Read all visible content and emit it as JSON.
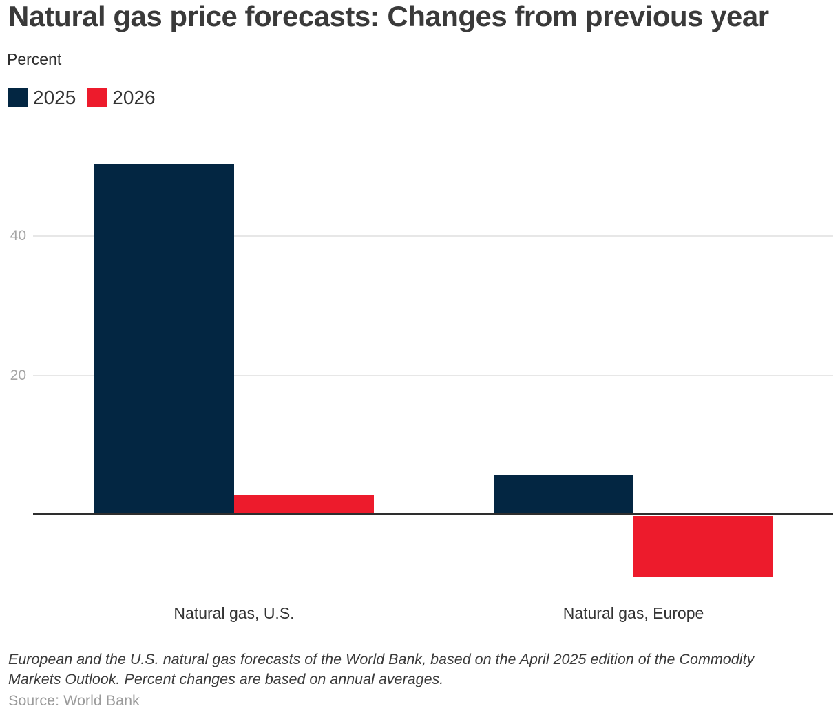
{
  "chart_data": {
    "type": "bar",
    "title": "Natural gas price forecasts: Changes from previous year",
    "ylabel": "Percent",
    "categories": [
      "Natural gas, U.S.",
      "Natural gas, Europe"
    ],
    "series": [
      {
        "name": "2025",
        "color": "#032642",
        "values": [
          50.4,
          5.7
        ]
      },
      {
        "name": "2026",
        "color": "#ed1b2c",
        "values": [
          3.0,
          -8.7
        ]
      }
    ],
    "yticks": [
      20,
      40
    ],
    "ylim": [
      -12,
      58
    ],
    "baseline": 0,
    "grid": true,
    "legend_position": "top-left",
    "notes": "European and the U.S. natural gas forecasts of the World Bank, based on the April 2025 edition of the Commodity Markets Outlook. Percent changes are based on annual averages.",
    "source": "Source: World Bank"
  },
  "colors": {
    "title_text": "#3a3a3a",
    "tick_text": "#a6a6a6",
    "gridline": "#e7e7e7",
    "axis_line": "#2e2e2e",
    "category_text": "#333333",
    "source_text": "#9b9b9b"
  }
}
